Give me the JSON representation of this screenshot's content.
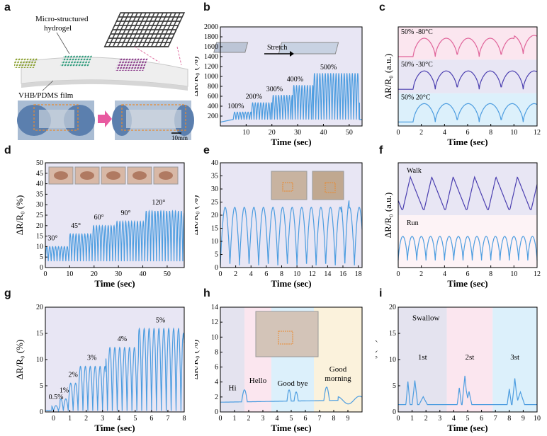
{
  "panels": {
    "a": {
      "label": "a",
      "hydrogel_label": "Micro-structured hydrogel",
      "hydrogel_line1": "Micro-structured",
      "hydrogel_line2": "hydrogel",
      "film_label": "VHB/PDMS film",
      "scale": "10mm"
    },
    "b": {
      "label": "b",
      "stretch_label": "Stretch"
    },
    "c": {
      "label": "c"
    },
    "d": {
      "label": "d"
    },
    "e": {
      "label": "e"
    },
    "f": {
      "label": "f"
    },
    "g": {
      "label": "g"
    },
    "h": {
      "label": "h"
    },
    "i": {
      "label": "i"
    }
  },
  "colors": {
    "line_blue": "#4d9de0",
    "dark_purple": "#4b3fb0",
    "pink": "#e0649a",
    "bg_purple": "#e8e6f4",
    "bg_pink": "#fbe6ef",
    "bg_blue": "#dcf0fb",
    "bg_yellow": "#fbf2dc",
    "bg_grey": "#e4e3ef"
  },
  "chart_data": [
    {
      "panel": "b",
      "type": "line",
      "xlabel": "Time (sec)",
      "ylabel": "ΔR/R₀ (%)",
      "xlim": [
        0,
        55
      ],
      "ylim": [
        0,
        2000
      ],
      "xticks": [
        10,
        20,
        30,
        40,
        50
      ],
      "yticks": [
        200,
        400,
        600,
        800,
        1000,
        1200,
        1400,
        1600,
        1800,
        2000
      ],
      "series": [
        {
          "values": [
            {
              "start": 5,
              "end": 12,
              "peak": 280,
              "label": "100%"
            },
            {
              "start": 12,
              "end": 20,
              "peak": 470,
              "label": "200%"
            },
            {
              "start": 20,
              "end": 28,
              "peak": 620,
              "label": "300%"
            },
            {
              "start": 28,
              "end": 36,
              "peak": 820,
              "label": "400%"
            },
            {
              "start": 36,
              "end": 54,
              "peak": 1060,
              "label": "500%"
            }
          ]
        }
      ],
      "period": 1.05,
      "base": 130
    },
    {
      "panel": "c",
      "type": "line",
      "xlabel": "Time (sec)",
      "ylabel": "ΔR/R₀ (a.u.)",
      "xlim": [
        0,
        12
      ],
      "xticks": [
        0,
        2,
        4,
        6,
        8,
        10,
        12
      ],
      "bands": [
        {
          "y0": 0.67,
          "y1": 1.0,
          "color": "#fbe6ef"
        },
        {
          "y0": 0.33,
          "y1": 0.67,
          "color": "#e8e6f4"
        },
        {
          "y0": 0.0,
          "y1": 0.33,
          "color": "#dcf0fb"
        }
      ],
      "series": [
        {
          "name": "50% -80°C",
          "color": "#e0649a"
        },
        {
          "name": "50% -30°C",
          "color": "#4b3fb0"
        },
        {
          "name": "50% 20°C",
          "color": "#4d9de0"
        }
      ]
    },
    {
      "panel": "d",
      "type": "line",
      "xlabel": "Time (sec)",
      "ylabel": "ΔR/R₀ (%)",
      "xlim": [
        0,
        57
      ],
      "ylim": [
        0,
        50
      ],
      "xticks": [
        0,
        10,
        20,
        30,
        40,
        50
      ],
      "yticks": [
        0,
        5,
        10,
        15,
        20,
        25,
        30,
        35,
        40,
        45,
        50
      ],
      "segments": [
        {
          "start": 0,
          "end": 10,
          "peak": 10,
          "label": "30°"
        },
        {
          "start": 10,
          "end": 19,
          "peak": 16,
          "label": "45°"
        },
        {
          "start": 19,
          "end": 29,
          "peak": 20,
          "label": "60°"
        },
        {
          "start": 29,
          "end": 41,
          "peak": 22,
          "label": "90°"
        },
        {
          "start": 41,
          "end": 56,
          "peak": 27,
          "label": "120°"
        }
      ]
    },
    {
      "panel": "e",
      "type": "line",
      "xlabel": "Time (sec)",
      "ylabel": "ΔR/R₀ (%)",
      "xlim": [
        0,
        18.5
      ],
      "ylim": [
        0,
        40
      ],
      "xticks": [
        0,
        2,
        4,
        6,
        8,
        10,
        12,
        14,
        16,
        18
      ],
      "yticks": [
        0,
        5,
        10,
        15,
        20,
        25,
        30,
        35,
        40
      ],
      "peak": 23,
      "period": 1.25
    },
    {
      "panel": "f",
      "type": "line",
      "xlabel": "Time (sec)",
      "ylabel": "ΔR/R₀ (a.u.)",
      "xlim": [
        0,
        12
      ],
      "xticks": [
        0,
        2,
        4,
        6,
        8,
        10,
        12
      ],
      "series": [
        {
          "name": "Walk",
          "color": "#4b3fb0"
        },
        {
          "name": "Run",
          "color": "#4d9de0"
        }
      ]
    },
    {
      "panel": "g",
      "type": "line",
      "xlabel": "Time (sec)",
      "ylabel": "ΔR/R₀ (%)",
      "xlim": [
        -0.5,
        8
      ],
      "ylim": [
        0,
        20
      ],
      "xticks": [
        0,
        1,
        2,
        3,
        4,
        5,
        6,
        7,
        8
      ],
      "yticks": [
        0,
        5,
        10,
        15,
        20
      ],
      "segments": [
        {
          "start": -0.1,
          "end": 0.4,
          "peak": 1.2,
          "label": "0.5%"
        },
        {
          "start": 0.4,
          "end": 0.9,
          "peak": 2.5,
          "label": "1%"
        },
        {
          "start": 0.9,
          "end": 1.5,
          "peak": 5.5,
          "label": "2%"
        },
        {
          "start": 1.5,
          "end": 3.2,
          "peak": 8.7,
          "label": "3%"
        },
        {
          "start": 3.2,
          "end": 5.2,
          "peak": 12.3,
          "label": "4%"
        },
        {
          "start": 5.2,
          "end": 7.9,
          "peak": 15.9,
          "label": "5%"
        }
      ]
    },
    {
      "panel": "h",
      "type": "line",
      "xlabel": "Time (sec)",
      "ylabel": "ΔR/R₀ (%)",
      "xlim": [
        0,
        10
      ],
      "ylim": [
        0,
        14
      ],
      "xticks": [
        0,
        1,
        2,
        3,
        4,
        5,
        6,
        7,
        8,
        9
      ],
      "yticks": [
        0,
        2,
        4,
        6,
        8,
        10,
        12,
        14
      ],
      "bands": [
        {
          "x0": 0,
          "x1": 1.7,
          "label": "Hi",
          "color": "#e4e3ef"
        },
        {
          "x0": 1.7,
          "x1": 3.6,
          "label": "Hello",
          "color": "#fbe6ef"
        },
        {
          "x0": 3.6,
          "x1": 6.6,
          "label": "Good bye",
          "color": "#dcf0fb"
        },
        {
          "x0": 6.6,
          "x1": 10,
          "label": "Good morning",
          "label_line1": "Good",
          "label_line2": "morning",
          "color": "#fbf2dc"
        }
      ]
    },
    {
      "panel": "i",
      "type": "line",
      "xlabel": "Time (sec)",
      "ylabel": "ΔR/R₀ (%)",
      "xlim": [
        0,
        10
      ],
      "ylim": [
        0,
        20
      ],
      "xticks": [
        0,
        1,
        2,
        3,
        4,
        5,
        6,
        7,
        8,
        9,
        10
      ],
      "yticks": [
        0,
        5,
        10,
        15,
        20
      ],
      "title_text": "Swallow",
      "bands": [
        {
          "x0": 0,
          "x1": 3.5,
          "label": "1st",
          "color": "#e4e3ef"
        },
        {
          "x0": 3.5,
          "x1": 6.8,
          "label": "2st",
          "color": "#fbe6ef"
        },
        {
          "x0": 6.8,
          "x1": 10,
          "label": "3st",
          "color": "#dcf0fb"
        }
      ]
    }
  ]
}
